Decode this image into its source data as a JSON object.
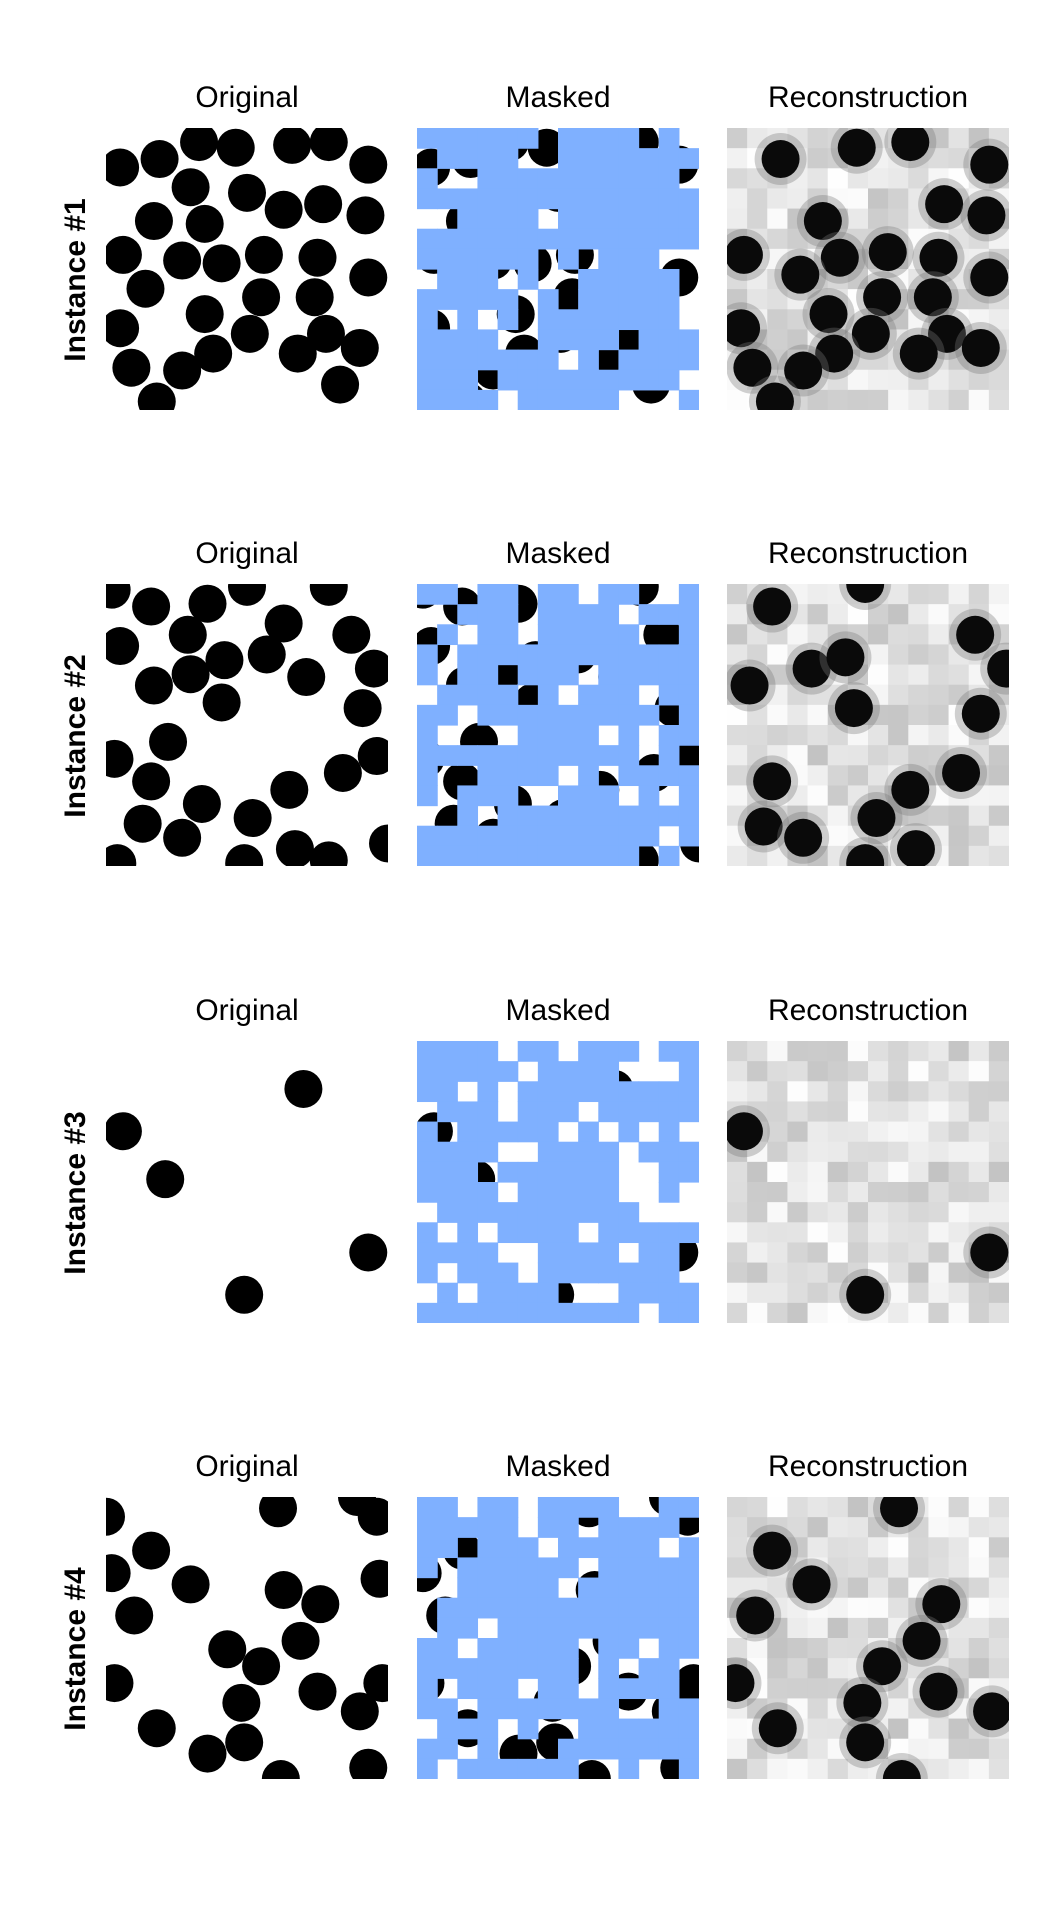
{
  "column_titles": [
    "Original",
    "Masked",
    "Reconstruction"
  ],
  "mask_color": "#7fb0ff",
  "instances": [
    {
      "label": "Instance #1",
      "circles": [
        [
          0.05,
          0.14
        ],
        [
          0.19,
          0.11
        ],
        [
          0.33,
          0.05
        ],
        [
          0.46,
          0.07
        ],
        [
          0.66,
          0.06
        ],
        [
          0.79,
          0.05
        ],
        [
          0.93,
          0.13
        ],
        [
          0.3,
          0.21
        ],
        [
          0.5,
          0.23
        ],
        [
          0.63,
          0.29
        ],
        [
          0.77,
          0.27
        ],
        [
          0.92,
          0.31
        ],
        [
          0.17,
          0.33
        ],
        [
          0.35,
          0.34
        ],
        [
          0.06,
          0.45
        ],
        [
          0.27,
          0.47
        ],
        [
          0.41,
          0.48
        ],
        [
          0.56,
          0.45
        ],
        [
          0.75,
          0.46
        ],
        [
          0.93,
          0.53
        ],
        [
          0.14,
          0.57
        ],
        [
          0.55,
          0.6
        ],
        [
          0.74,
          0.6
        ],
        [
          0.35,
          0.66
        ],
        [
          0.05,
          0.71
        ],
        [
          0.51,
          0.73
        ],
        [
          0.78,
          0.73
        ],
        [
          0.9,
          0.78
        ],
        [
          0.38,
          0.8
        ],
        [
          0.68,
          0.8
        ],
        [
          0.09,
          0.85
        ],
        [
          0.27,
          0.86
        ],
        [
          0.83,
          0.91
        ],
        [
          0.18,
          0.97
        ]
      ],
      "recon": [
        [
          0.19,
          0.11
        ],
        [
          0.46,
          0.07
        ],
        [
          0.65,
          0.05
        ],
        [
          0.93,
          0.13
        ],
        [
          0.77,
          0.27
        ],
        [
          0.92,
          0.31
        ],
        [
          0.34,
          0.33
        ],
        [
          0.06,
          0.45
        ],
        [
          0.4,
          0.46
        ],
        [
          0.57,
          0.44
        ],
        [
          0.75,
          0.46
        ],
        [
          0.26,
          0.52
        ],
        [
          0.93,
          0.53
        ],
        [
          0.55,
          0.6
        ],
        [
          0.73,
          0.6
        ],
        [
          0.36,
          0.66
        ],
        [
          0.05,
          0.71
        ],
        [
          0.51,
          0.73
        ],
        [
          0.78,
          0.73
        ],
        [
          0.9,
          0.78
        ],
        [
          0.38,
          0.8
        ],
        [
          0.68,
          0.8
        ],
        [
          0.09,
          0.85
        ],
        [
          0.27,
          0.86
        ],
        [
          0.17,
          0.97
        ]
      ]
    },
    {
      "label": "Instance #2",
      "circles": [
        [
          0.02,
          0.02
        ],
        [
          0.16,
          0.08
        ],
        [
          0.36,
          0.07
        ],
        [
          0.5,
          0.01
        ],
        [
          0.79,
          0.01
        ],
        [
          0.29,
          0.18
        ],
        [
          0.63,
          0.14
        ],
        [
          0.87,
          0.18
        ],
        [
          0.05,
          0.22
        ],
        [
          0.42,
          0.27
        ],
        [
          0.57,
          0.25
        ],
        [
          0.3,
          0.32
        ],
        [
          0.95,
          0.3
        ],
        [
          0.17,
          0.36
        ],
        [
          0.71,
          0.33
        ],
        [
          0.41,
          0.42
        ],
        [
          0.91,
          0.44
        ],
        [
          0.22,
          0.56
        ],
        [
          0.96,
          0.61
        ],
        [
          0.16,
          0.7
        ],
        [
          0.03,
          0.62
        ],
        [
          0.84,
          0.67
        ],
        [
          0.65,
          0.73
        ],
        [
          0.34,
          0.78
        ],
        [
          0.52,
          0.83
        ],
        [
          0.13,
          0.85
        ],
        [
          0.27,
          0.9
        ],
        [
          0.67,
          0.94
        ],
        [
          0.79,
          0.98
        ],
        [
          0.49,
          0.99
        ],
        [
          0.04,
          0.99
        ],
        [
          1.0,
          0.92
        ]
      ],
      "recon": [
        [
          0.16,
          0.08
        ],
        [
          0.49,
          0.0
        ],
        [
          0.88,
          0.18
        ],
        [
          0.99,
          0.3
        ],
        [
          0.3,
          0.3
        ],
        [
          0.42,
          0.26
        ],
        [
          0.08,
          0.36
        ],
        [
          0.45,
          0.44
        ],
        [
          0.9,
          0.46
        ],
        [
          0.16,
          0.7
        ],
        [
          0.65,
          0.73
        ],
        [
          0.83,
          0.67
        ],
        [
          0.53,
          0.83
        ],
        [
          0.13,
          0.86
        ],
        [
          0.27,
          0.9
        ],
        [
          0.67,
          0.94
        ],
        [
          0.49,
          0.99
        ]
      ]
    },
    {
      "label": "Instance #3",
      "circles": [
        [
          0.7,
          0.17
        ],
        [
          0.06,
          0.32
        ],
        [
          0.21,
          0.49
        ],
        [
          0.93,
          0.75
        ],
        [
          0.49,
          0.9
        ]
      ],
      "recon": [
        [
          0.06,
          0.32
        ],
        [
          0.93,
          0.75
        ],
        [
          0.49,
          0.9
        ]
      ]
    },
    {
      "label": "Instance #4",
      "circles": [
        [
          0.61,
          0.04
        ],
        [
          0.89,
          0.0
        ],
        [
          0.0,
          0.07
        ],
        [
          0.96,
          0.07
        ],
        [
          0.16,
          0.19
        ],
        [
          0.02,
          0.27
        ],
        [
          0.3,
          0.31
        ],
        [
          0.63,
          0.33
        ],
        [
          0.76,
          0.38
        ],
        [
          0.97,
          0.29
        ],
        [
          0.1,
          0.42
        ],
        [
          0.43,
          0.54
        ],
        [
          0.69,
          0.51
        ],
        [
          0.55,
          0.6
        ],
        [
          0.98,
          0.66
        ],
        [
          0.03,
          0.66
        ],
        [
          0.48,
          0.73
        ],
        [
          0.75,
          0.69
        ],
        [
          0.9,
          0.76
        ],
        [
          0.18,
          0.82
        ],
        [
          0.49,
          0.87
        ],
        [
          0.36,
          0.91
        ],
        [
          0.93,
          0.96
        ],
        [
          0.62,
          1.0
        ]
      ],
      "recon": [
        [
          0.61,
          0.04
        ],
        [
          0.16,
          0.19
        ],
        [
          0.3,
          0.31
        ],
        [
          0.76,
          0.38
        ],
        [
          0.1,
          0.42
        ],
        [
          0.69,
          0.51
        ],
        [
          0.55,
          0.6
        ],
        [
          0.03,
          0.66
        ],
        [
          0.48,
          0.73
        ],
        [
          0.75,
          0.69
        ],
        [
          0.94,
          0.76
        ],
        [
          0.18,
          0.82
        ],
        [
          0.49,
          0.87
        ],
        [
          0.62,
          1.0
        ]
      ]
    }
  ]
}
